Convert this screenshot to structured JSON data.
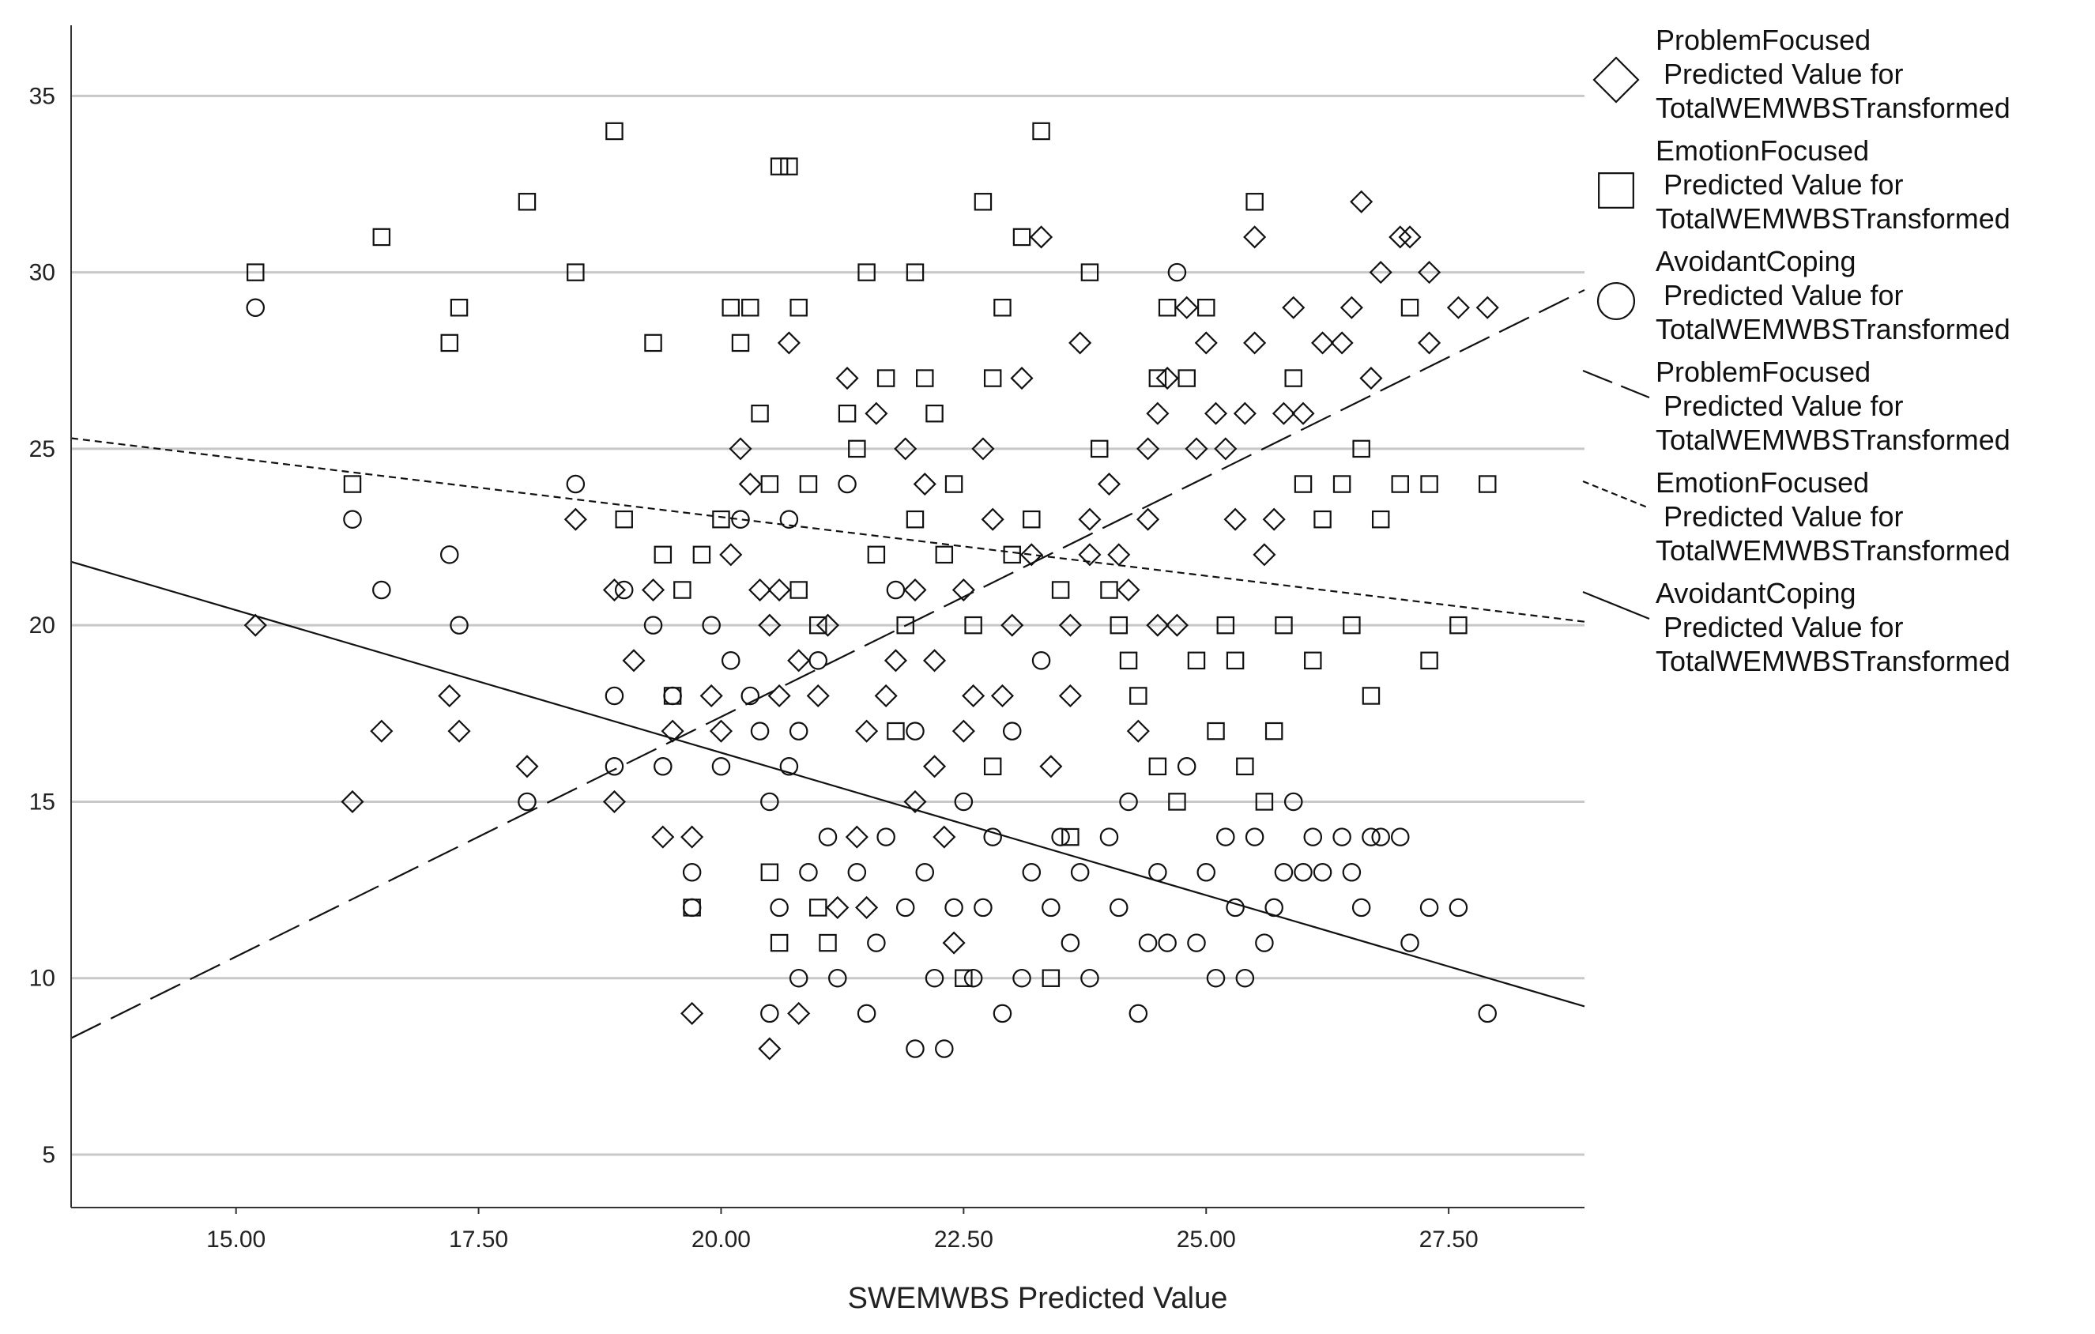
{
  "chart_data": {
    "type": "scatter",
    "xlabel": "SWEMWBS Predicted Value",
    "ylabel": "",
    "xlim": [
      13.3,
      28.9
    ],
    "ylim": [
      3.5,
      37.0
    ],
    "xticks": [
      15.0,
      17.5,
      20.0,
      22.5,
      25.0,
      27.5
    ],
    "xtick_labels": [
      "15.00",
      "17.50",
      "20.00",
      "22.50",
      "25.00",
      "27.50"
    ],
    "yticks": [
      5,
      10,
      15,
      20,
      25,
      30,
      35
    ],
    "ytick_labels": [
      "5",
      "10",
      "15",
      "20",
      "25",
      "30",
      "35"
    ],
    "grid": "horizontal",
    "legend_position": "right",
    "series": [
      {
        "name": "ProblemFocused Predicted Value for TotalWEMWBSTransformed",
        "legend_lines": [
          "ProblemFocused",
          " Predicted Value for",
          "TotalWEMWBSTransformed"
        ],
        "kind": "points",
        "marker": "diamond",
        "points": [
          [
            15.2,
            20
          ],
          [
            16.2,
            15
          ],
          [
            16.5,
            17
          ],
          [
            17.2,
            18
          ],
          [
            17.3,
            17
          ],
          [
            18.0,
            16
          ],
          [
            18.5,
            23
          ],
          [
            18.9,
            15
          ],
          [
            18.9,
            21
          ],
          [
            19.1,
            19
          ],
          [
            19.3,
            21
          ],
          [
            19.4,
            14
          ],
          [
            19.5,
            17
          ],
          [
            19.7,
            9
          ],
          [
            19.7,
            14
          ],
          [
            19.9,
            18
          ],
          [
            20.0,
            17
          ],
          [
            20.1,
            22
          ],
          [
            20.2,
            25
          ],
          [
            20.3,
            24
          ],
          [
            20.4,
            21
          ],
          [
            20.5,
            20
          ],
          [
            20.5,
            8
          ],
          [
            20.6,
            21
          ],
          [
            20.6,
            18
          ],
          [
            20.7,
            28
          ],
          [
            20.8,
            9
          ],
          [
            20.8,
            19
          ],
          [
            21.0,
            18
          ],
          [
            21.1,
            20
          ],
          [
            21.2,
            12
          ],
          [
            21.3,
            27
          ],
          [
            21.4,
            14
          ],
          [
            21.5,
            17
          ],
          [
            21.5,
            12
          ],
          [
            21.6,
            26
          ],
          [
            21.7,
            18
          ],
          [
            21.8,
            19
          ],
          [
            21.9,
            25
          ],
          [
            22.0,
            15
          ],
          [
            22.0,
            21
          ],
          [
            22.1,
            24
          ],
          [
            22.2,
            16
          ],
          [
            22.2,
            19
          ],
          [
            22.3,
            14
          ],
          [
            22.4,
            11
          ],
          [
            22.5,
            21
          ],
          [
            22.5,
            17
          ],
          [
            22.6,
            18
          ],
          [
            22.7,
            25
          ],
          [
            22.8,
            23
          ],
          [
            22.9,
            18
          ],
          [
            23.0,
            20
          ],
          [
            23.1,
            27
          ],
          [
            23.2,
            22
          ],
          [
            23.3,
            31
          ],
          [
            23.4,
            16
          ],
          [
            23.6,
            20
          ],
          [
            23.6,
            18
          ],
          [
            23.7,
            28
          ],
          [
            23.8,
            23
          ],
          [
            23.8,
            22
          ],
          [
            24.0,
            24
          ],
          [
            24.1,
            22
          ],
          [
            24.2,
            21
          ],
          [
            24.3,
            17
          ],
          [
            24.4,
            23
          ],
          [
            24.4,
            25
          ],
          [
            24.5,
            26
          ],
          [
            24.5,
            20
          ],
          [
            24.6,
            27
          ],
          [
            24.7,
            20
          ],
          [
            24.8,
            29
          ],
          [
            24.9,
            25
          ],
          [
            25.0,
            28
          ],
          [
            25.1,
            26
          ],
          [
            25.2,
            25
          ],
          [
            25.3,
            23
          ],
          [
            25.4,
            26
          ],
          [
            25.5,
            31
          ],
          [
            25.5,
            28
          ],
          [
            25.6,
            22
          ],
          [
            25.7,
            23
          ],
          [
            25.8,
            26
          ],
          [
            25.9,
            29
          ],
          [
            26.0,
            26
          ],
          [
            26.2,
            28
          ],
          [
            26.4,
            28
          ],
          [
            26.5,
            29
          ],
          [
            26.6,
            32
          ],
          [
            26.7,
            27
          ],
          [
            26.8,
            30
          ],
          [
            27.0,
            31
          ],
          [
            27.1,
            31
          ],
          [
            27.3,
            30
          ],
          [
            27.3,
            28
          ],
          [
            27.6,
            29
          ],
          [
            27.9,
            29
          ]
        ]
      },
      {
        "name": "EmotionFocused Predicted Value for TotalWEMWBSTransformed",
        "legend_lines": [
          "EmotionFocused",
          " Predicted Value for",
          "TotalWEMWBSTransformed"
        ],
        "kind": "points",
        "marker": "square",
        "points": [
          [
            15.2,
            30
          ],
          [
            16.2,
            24
          ],
          [
            16.5,
            31
          ],
          [
            17.2,
            28
          ],
          [
            17.3,
            29
          ],
          [
            18.0,
            32
          ],
          [
            18.5,
            30
          ],
          [
            18.9,
            34
          ],
          [
            19.0,
            23
          ],
          [
            19.3,
            28
          ],
          [
            19.4,
            22
          ],
          [
            19.5,
            18
          ],
          [
            19.6,
            21
          ],
          [
            19.7,
            12
          ],
          [
            19.8,
            22
          ],
          [
            20.0,
            23
          ],
          [
            20.1,
            29
          ],
          [
            20.2,
            28
          ],
          [
            20.3,
            29
          ],
          [
            20.4,
            26
          ],
          [
            20.5,
            24
          ],
          [
            20.5,
            13
          ],
          [
            20.6,
            33
          ],
          [
            20.6,
            11
          ],
          [
            20.7,
            33
          ],
          [
            20.8,
            29
          ],
          [
            20.8,
            21
          ],
          [
            20.9,
            24
          ],
          [
            21.0,
            20
          ],
          [
            21.0,
            12
          ],
          [
            21.1,
            11
          ],
          [
            21.3,
            26
          ],
          [
            21.4,
            25
          ],
          [
            21.5,
            30
          ],
          [
            21.6,
            22
          ],
          [
            21.7,
            27
          ],
          [
            21.8,
            17
          ],
          [
            21.9,
            20
          ],
          [
            22.0,
            30
          ],
          [
            22.0,
            23
          ],
          [
            22.1,
            27
          ],
          [
            22.2,
            26
          ],
          [
            22.3,
            22
          ],
          [
            22.4,
            24
          ],
          [
            22.5,
            10
          ],
          [
            22.6,
            20
          ],
          [
            22.7,
            32
          ],
          [
            22.8,
            27
          ],
          [
            22.8,
            16
          ],
          [
            22.9,
            29
          ],
          [
            23.0,
            22
          ],
          [
            23.1,
            31
          ],
          [
            23.2,
            23
          ],
          [
            23.3,
            34
          ],
          [
            23.4,
            10
          ],
          [
            23.5,
            21
          ],
          [
            23.6,
            14
          ],
          [
            23.8,
            30
          ],
          [
            23.9,
            25
          ],
          [
            24.0,
            21
          ],
          [
            24.1,
            20
          ],
          [
            24.2,
            19
          ],
          [
            24.3,
            18
          ],
          [
            24.5,
            27
          ],
          [
            24.5,
            16
          ],
          [
            24.6,
            29
          ],
          [
            24.7,
            15
          ],
          [
            24.8,
            27
          ],
          [
            24.9,
            19
          ],
          [
            25.0,
            29
          ],
          [
            25.1,
            17
          ],
          [
            25.2,
            20
          ],
          [
            25.3,
            19
          ],
          [
            25.4,
            16
          ],
          [
            25.5,
            32
          ],
          [
            25.6,
            15
          ],
          [
            25.7,
            17
          ],
          [
            25.8,
            20
          ],
          [
            25.9,
            27
          ],
          [
            26.0,
            24
          ],
          [
            26.1,
            19
          ],
          [
            26.2,
            23
          ],
          [
            26.4,
            24
          ],
          [
            26.5,
            20
          ],
          [
            26.6,
            25
          ],
          [
            26.7,
            18
          ],
          [
            26.8,
            23
          ],
          [
            27.0,
            24
          ],
          [
            27.1,
            29
          ],
          [
            27.3,
            24
          ],
          [
            27.3,
            19
          ],
          [
            27.6,
            20
          ],
          [
            27.9,
            24
          ]
        ]
      },
      {
        "name": "AvoidantCoping Predicted Value for TotalWEMWBSTransformed",
        "legend_lines": [
          "AvoidantCoping",
          " Predicted Value for",
          "TotalWEMWBSTransformed"
        ],
        "kind": "points",
        "marker": "circle",
        "points": [
          [
            15.2,
            29
          ],
          [
            16.2,
            23
          ],
          [
            16.5,
            21
          ],
          [
            17.2,
            22
          ],
          [
            17.3,
            20
          ],
          [
            18.0,
            15
          ],
          [
            18.5,
            24
          ],
          [
            18.9,
            18
          ],
          [
            18.9,
            16
          ],
          [
            19.0,
            21
          ],
          [
            19.3,
            20
          ],
          [
            19.4,
            16
          ],
          [
            19.5,
            18
          ],
          [
            19.7,
            13
          ],
          [
            19.7,
            12
          ],
          [
            19.9,
            20
          ],
          [
            20.0,
            16
          ],
          [
            20.1,
            19
          ],
          [
            20.2,
            23
          ],
          [
            20.3,
            18
          ],
          [
            20.4,
            17
          ],
          [
            20.5,
            15
          ],
          [
            20.5,
            9
          ],
          [
            20.6,
            12
          ],
          [
            20.7,
            23
          ],
          [
            20.7,
            16
          ],
          [
            20.8,
            17
          ],
          [
            20.8,
            10
          ],
          [
            20.9,
            13
          ],
          [
            21.0,
            19
          ],
          [
            21.1,
            14
          ],
          [
            21.2,
            10
          ],
          [
            21.3,
            24
          ],
          [
            21.4,
            13
          ],
          [
            21.5,
            9
          ],
          [
            21.6,
            11
          ],
          [
            21.7,
            14
          ],
          [
            21.8,
            21
          ],
          [
            21.9,
            12
          ],
          [
            22.0,
            8
          ],
          [
            22.0,
            17
          ],
          [
            22.1,
            13
          ],
          [
            22.2,
            10
          ],
          [
            22.3,
            8
          ],
          [
            22.4,
            12
          ],
          [
            22.5,
            15
          ],
          [
            22.6,
            10
          ],
          [
            22.7,
            12
          ],
          [
            22.8,
            14
          ],
          [
            22.9,
            9
          ],
          [
            23.0,
            17
          ],
          [
            23.1,
            10
          ],
          [
            23.2,
            13
          ],
          [
            23.3,
            19
          ],
          [
            23.4,
            12
          ],
          [
            23.5,
            14
          ],
          [
            23.6,
            11
          ],
          [
            23.7,
            13
          ],
          [
            23.8,
            10
          ],
          [
            24.0,
            14
          ],
          [
            24.1,
            12
          ],
          [
            24.2,
            15
          ],
          [
            24.3,
            9
          ],
          [
            24.4,
            11
          ],
          [
            24.5,
            13
          ],
          [
            24.6,
            11
          ],
          [
            24.7,
            30
          ],
          [
            24.8,
            16
          ],
          [
            24.9,
            11
          ],
          [
            25.0,
            13
          ],
          [
            25.1,
            10
          ],
          [
            25.2,
            14
          ],
          [
            25.3,
            12
          ],
          [
            25.4,
            10
          ],
          [
            25.5,
            14
          ],
          [
            25.6,
            11
          ],
          [
            25.7,
            12
          ],
          [
            25.8,
            13
          ],
          [
            25.9,
            15
          ],
          [
            26.0,
            13
          ],
          [
            26.1,
            14
          ],
          [
            26.2,
            13
          ],
          [
            26.4,
            14
          ],
          [
            26.5,
            13
          ],
          [
            26.6,
            12
          ],
          [
            26.7,
            14
          ],
          [
            26.8,
            14
          ],
          [
            27.0,
            14
          ],
          [
            27.1,
            11
          ],
          [
            27.3,
            12
          ],
          [
            27.6,
            12
          ],
          [
            27.9,
            9
          ]
        ]
      },
      {
        "name": "ProblemFocused Predicted Value for TotalWEMWBSTransformed",
        "legend_lines": [
          "ProblemFocused",
          " Predicted Value for",
          "TotalWEMWBSTransformed"
        ],
        "kind": "fitline",
        "style": "long-dash",
        "x": [
          13.3,
          28.9
        ],
        "y": [
          8.3,
          29.5
        ]
      },
      {
        "name": "EmotionFocused Predicted Value for TotalWEMWBSTransformed",
        "legend_lines": [
          "EmotionFocused",
          " Predicted Value for",
          "TotalWEMWBSTransformed"
        ],
        "kind": "fitline",
        "style": "short-dash",
        "x": [
          13.3,
          28.9
        ],
        "y": [
          25.3,
          20.1
        ]
      },
      {
        "name": "AvoidantCoping Predicted Value for TotalWEMWBSTransformed",
        "legend_lines": [
          "AvoidantCoping",
          " Predicted Value for",
          "TotalWEMWBSTransformed"
        ],
        "kind": "fitline",
        "style": "solid",
        "x": [
          13.3,
          28.9
        ],
        "y": [
          21.8,
          9.2
        ]
      }
    ]
  }
}
